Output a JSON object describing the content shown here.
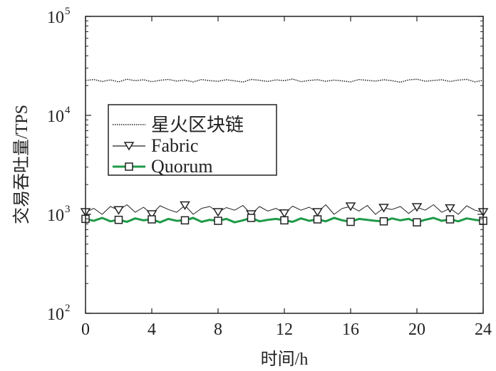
{
  "chart_data": {
    "type": "line",
    "title": "",
    "xlabel": "时间/h",
    "ylabel": "交易吞吐量/TPS",
    "xlim": [
      0,
      24
    ],
    "ylim": [
      100,
      100000
    ],
    "yscale": "log",
    "x_step_h": 0.5,
    "x_ticks": [
      0,
      4,
      8,
      12,
      16,
      20,
      24
    ],
    "x_tick_labels": [
      "0",
      "4",
      "8",
      "12",
      "16",
      "20",
      "24"
    ],
    "y_ticks": [
      100,
      1000,
      10000,
      100000
    ],
    "y_tick_bases": [
      "10",
      "10",
      "10",
      "10"
    ],
    "y_tick_exps": [
      "2",
      "3",
      "4",
      "5"
    ],
    "marker_every_h": 2,
    "legend_position": "upper-left-center",
    "series": [
      {
        "name": "星火区块链",
        "style": "dotted",
        "color": "#222222",
        "marker": "none",
        "values": [
          22500,
          23000,
          22000,
          22800,
          21800,
          23200,
          22400,
          22900,
          21900,
          22600,
          23100,
          22200,
          22700,
          21800,
          23000,
          22400,
          22100,
          22900,
          22300,
          21700,
          23100,
          22600,
          22000,
          22800,
          22400,
          23300,
          21900,
          22500,
          22900,
          22100,
          22700,
          22300,
          21800,
          23000,
          22600,
          22200,
          22900,
          22400,
          21600,
          22800,
          23200,
          22100,
          22500,
          22900,
          22000,
          22700,
          23100,
          21800,
          22600
        ]
      },
      {
        "name": "Fabric",
        "style": "solid-thin",
        "color": "#222222",
        "marker": "triangle-down",
        "values": [
          1050,
          1150,
          1000,
          1200,
          1100,
          1250,
          1050,
          1180,
          1000,
          1220,
          1120,
          1050,
          1230,
          1000,
          1150,
          1200,
          1050,
          1170,
          1100,
          1230,
          1000,
          1200,
          1080,
          1150,
          1020,
          1210,
          1100,
          1180,
          1050,
          1250,
          1000,
          1150,
          1200,
          1080,
          1230,
          1000,
          1160,
          1120,
          1200,
          1020,
          1180,
          1100,
          1250,
          1050,
          1150,
          1000,
          1220,
          1100,
          1050
        ]
      },
      {
        "name": "Quorum",
        "style": "solid-thick",
        "color": "#1f9a48",
        "marker": "square",
        "values": [
          900,
          860,
          920,
          850,
          880,
          840,
          910,
          870,
          890,
          830,
          900,
          860,
          870,
          920,
          840,
          880,
          860,
          900,
          830,
          870,
          920,
          850,
          880,
          900,
          870,
          840,
          910,
          860,
          890,
          850,
          920,
          870,
          840,
          900,
          880,
          860,
          850,
          910,
          870,
          900,
          830,
          880,
          920,
          860,
          890,
          850,
          910,
          880,
          860
        ]
      }
    ]
  }
}
